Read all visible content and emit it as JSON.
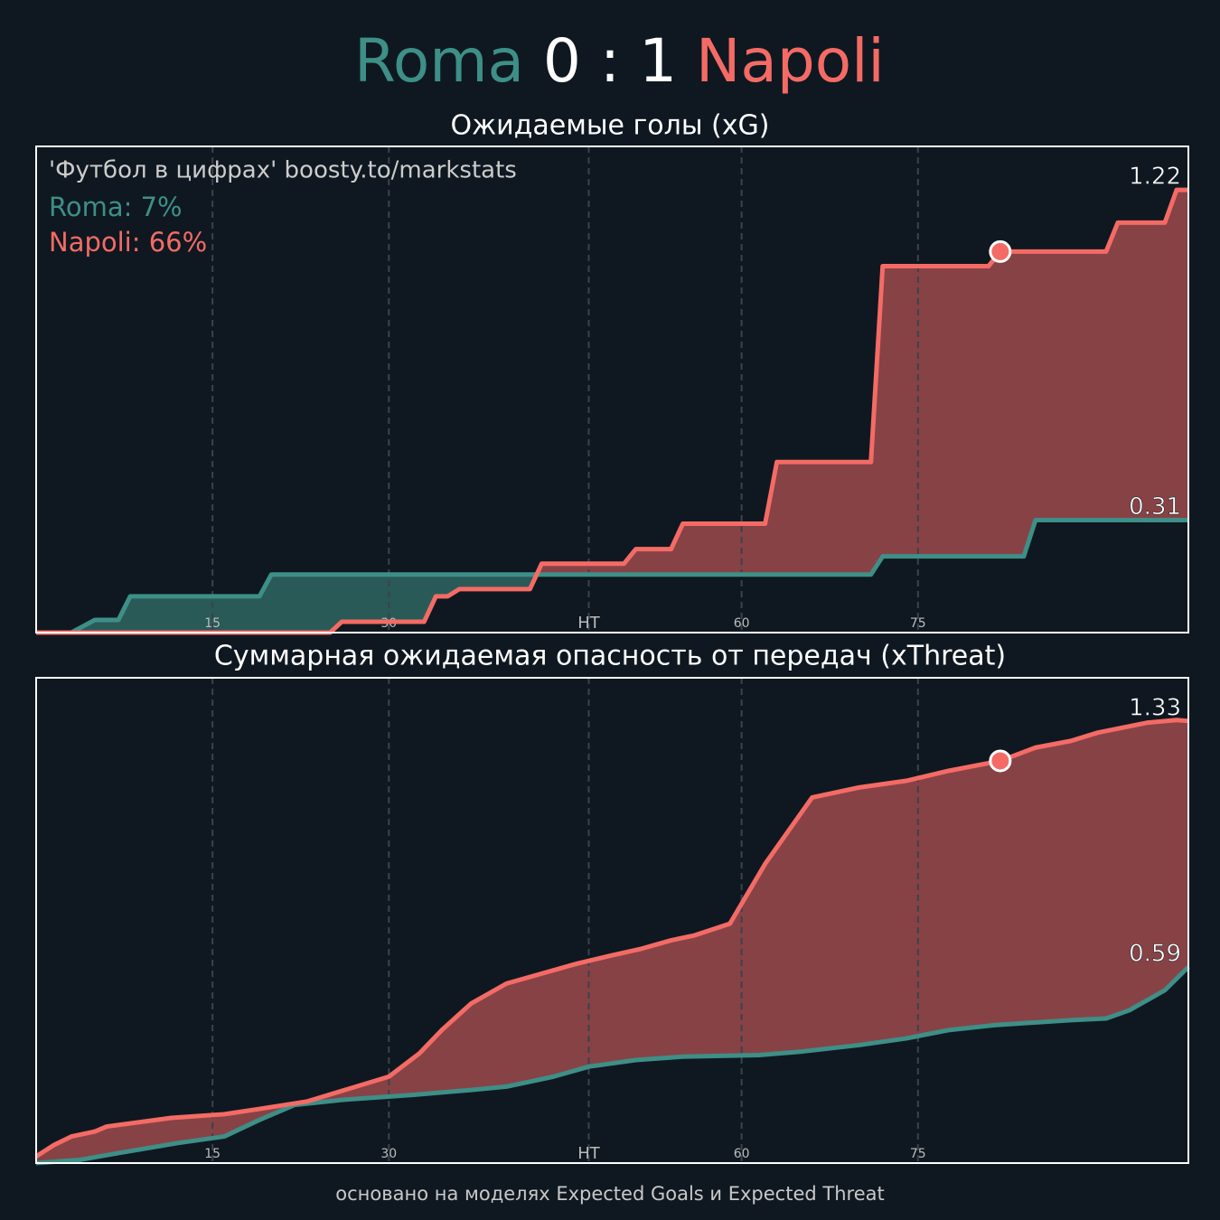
{
  "header": {
    "home": "Roma",
    "score": "0 : 1",
    "away": "Napoli"
  },
  "watermark": "'Футбол в цифрах' boosty.to/markstats",
  "probabilities": [
    "Roma: 7%",
    "Napoli: 66%"
  ],
  "footer": "основано на моделях Expected Goals и Expected Threat",
  "chart_data": [
    {
      "type": "line",
      "title": "Ожидаемые голы (xG)",
      "xlim": [
        0,
        98
      ],
      "ylim": [
        0,
        1.34
      ],
      "xticks": [
        15,
        30,
        {
          "value": 47,
          "label": "HT"
        },
        60,
        75
      ],
      "grid": true,
      "series": [
        {
          "name": "Roma",
          "color": "#3d8f87",
          "fill": "#2a5a58",
          "x": [
            0,
            3,
            5,
            7,
            8,
            19,
            20,
            71,
            72,
            84,
            85,
            98
          ],
          "values": [
            0,
            0,
            0.035,
            0.035,
            0.1,
            0.1,
            0.16,
            0.16,
            0.21,
            0.21,
            0.31,
            0.31
          ]
        },
        {
          "name": "Napoli",
          "color": "#f46b65",
          "fill": "#874246",
          "x": [
            0,
            25,
            26,
            33,
            34,
            35,
            36,
            42,
            43,
            50,
            51,
            54,
            55,
            62,
            63,
            71,
            72,
            81,
            82,
            91,
            92,
            96,
            97,
            98
          ],
          "values": [
            0,
            0,
            0.03,
            0.03,
            0.1,
            0.1,
            0.12,
            0.12,
            0.19,
            0.19,
            0.23,
            0.23,
            0.3,
            0.3,
            0.47,
            0.47,
            1.01,
            1.01,
            1.05,
            1.05,
            1.13,
            1.13,
            1.22,
            1.22
          ],
          "goal": {
            "x": 82,
            "value": 1.05
          }
        }
      ]
    },
    {
      "type": "line",
      "title": "Суммарная ожидаемая опасность от передач (xThreat)",
      "xlim": [
        0,
        98
      ],
      "ylim": [
        0,
        1.46
      ],
      "xticks": [
        15,
        30,
        {
          "value": 47,
          "label": "HT"
        },
        60,
        75
      ],
      "grid": true,
      "series": [
        {
          "name": "Roma",
          "color": "#3d8f87",
          "fill": "#2a5a58",
          "x": [
            0,
            3.8,
            7,
            12,
            16,
            19,
            22,
            26,
            32,
            37,
            40,
            44,
            47,
            51,
            55,
            61.5,
            65,
            70,
            74,
            77.6,
            81.5,
            88,
            91,
            93,
            96,
            98
          ],
          "values": [
            0,
            0.01,
            0.03,
            0.06,
            0.08,
            0.13,
            0.175,
            0.19,
            0.205,
            0.22,
            0.23,
            0.26,
            0.29,
            0.31,
            0.32,
            0.325,
            0.335,
            0.355,
            0.375,
            0.4,
            0.415,
            0.43,
            0.435,
            0.46,
            0.52,
            0.59
          ]
        },
        {
          "name": "Napoli",
          "color": "#f46b65",
          "fill": "#874246",
          "x": [
            0,
            1.5,
            3,
            5,
            6,
            11.5,
            16,
            19,
            23,
            30,
            32.6,
            34.5,
            37,
            40,
            42,
            46,
            49,
            51.5,
            54,
            56,
            59,
            62,
            66,
            70,
            74,
            77.6,
            82,
            85,
            88,
            90.3,
            94.5,
            97,
            98
          ],
          "values": [
            0.02,
            0.054,
            0.08,
            0.095,
            0.11,
            0.136,
            0.147,
            0.163,
            0.185,
            0.26,
            0.33,
            0.4,
            0.48,
            0.54,
            0.56,
            0.6,
            0.625,
            0.645,
            0.67,
            0.685,
            0.72,
            0.9,
            1.1,
            1.13,
            1.15,
            1.18,
            1.21,
            1.25,
            1.27,
            1.295,
            1.325,
            1.333,
            1.33
          ],
          "goal": {
            "x": 82,
            "value": 1.21
          }
        }
      ]
    }
  ]
}
